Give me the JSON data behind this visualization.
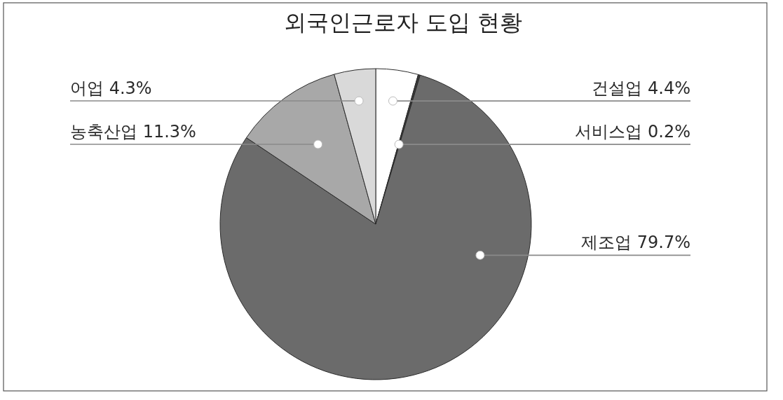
{
  "chart_data": {
    "type": "pie",
    "title": "외국인근로자 도입 현황",
    "categories": [
      "건설업",
      "서비스업",
      "제조업",
      "농축산업",
      "어업"
    ],
    "values": [
      4.4,
      0.2,
      79.7,
      11.3,
      4.3
    ],
    "value_labels": [
      "4.4%",
      "0.2%",
      "79.7%",
      "11.3%",
      "4.3%"
    ],
    "colors": [
      "#ffffff",
      "#3a3a3a",
      "#6b6b6b",
      "#a8a8a8",
      "#d9d9d9"
    ]
  }
}
